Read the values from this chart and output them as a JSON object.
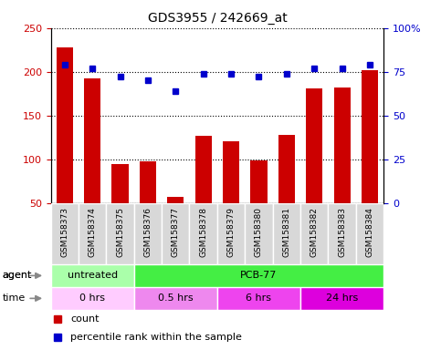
{
  "title": "GDS3955 / 242669_at",
  "samples": [
    "GSM158373",
    "GSM158374",
    "GSM158375",
    "GSM158376",
    "GSM158377",
    "GSM158378",
    "GSM158379",
    "GSM158380",
    "GSM158381",
    "GSM158382",
    "GSM158383",
    "GSM158384"
  ],
  "counts": [
    228,
    192,
    95,
    98,
    57,
    127,
    121,
    99,
    128,
    181,
    182,
    202
  ],
  "percentile": [
    79,
    77,
    72,
    70,
    64,
    74,
    74,
    72,
    74,
    77,
    77,
    79
  ],
  "ylim_left": [
    50,
    250
  ],
  "ylim_right": [
    0,
    100
  ],
  "yticks_left": [
    50,
    100,
    150,
    200,
    250
  ],
  "yticks_right": [
    0,
    25,
    50,
    75,
    100
  ],
  "bar_color": "#cc0000",
  "dot_color": "#0000cc",
  "agent_groups": [
    {
      "label": "untreated",
      "start": 0,
      "end": 3,
      "color": "#aaffaa"
    },
    {
      "label": "PCB-77",
      "start": 3,
      "end": 12,
      "color": "#44ee44"
    }
  ],
  "time_groups": [
    {
      "label": "0 hrs",
      "start": 0,
      "end": 3,
      "color": "#ffccff"
    },
    {
      "label": "0.5 hrs",
      "start": 3,
      "end": 6,
      "color": "#ee88ee"
    },
    {
      "label": "6 hrs",
      "start": 6,
      "end": 9,
      "color": "#ee44ee"
    },
    {
      "label": "24 hrs",
      "start": 9,
      "end": 12,
      "color": "#dd00dd"
    }
  ],
  "legend_count_label": "count",
  "legend_pct_label": "percentile rank within the sample"
}
